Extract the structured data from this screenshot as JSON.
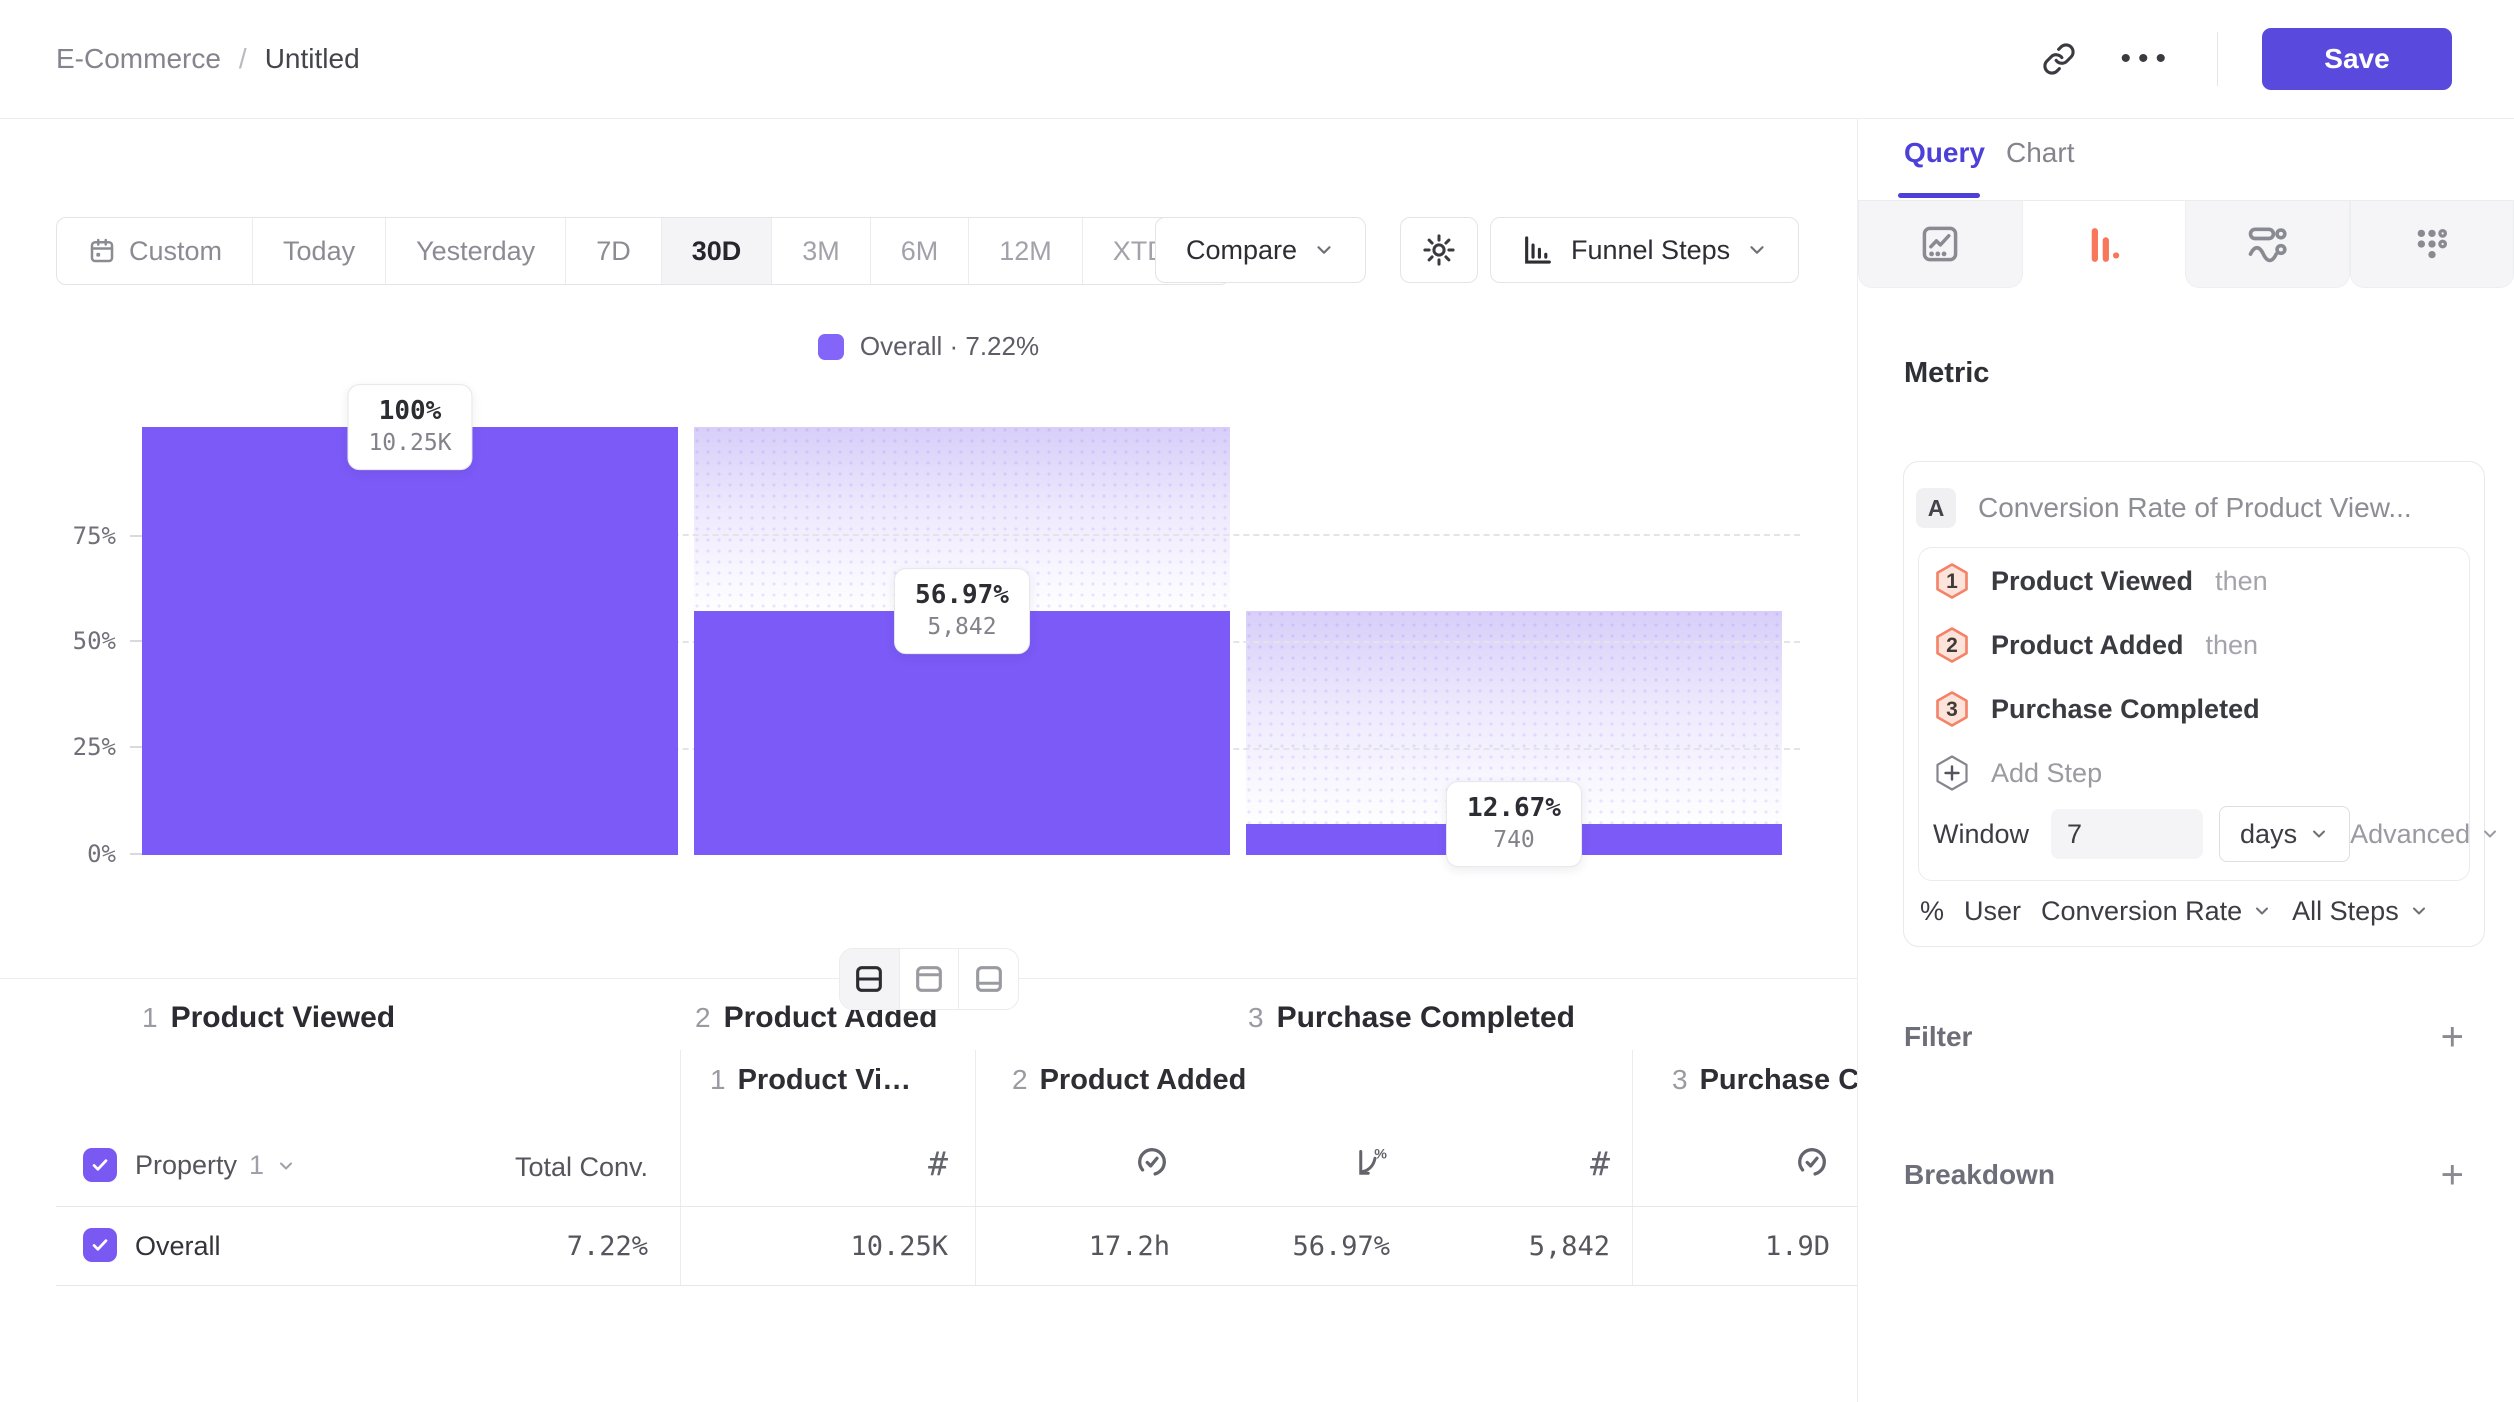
{
  "header": {
    "breadcrumb_parent": "E-Commerce",
    "breadcrumb_sep": "/",
    "breadcrumb_current": "Untitled",
    "save_label": "Save"
  },
  "toolbar": {
    "ranges": [
      "Custom",
      "Today",
      "Yesterday",
      "7D",
      "30D",
      "3M",
      "6M",
      "12M",
      "XTD"
    ],
    "selected_range": "30D",
    "compare_label": "Compare",
    "chart_type_label": "Funnel Steps"
  },
  "chart_data": {
    "type": "funnel",
    "title": "Funnel Steps",
    "legend": [
      {
        "label": "Overall · 7.22%",
        "color": "#8365fa"
      }
    ],
    "y_ticks": [
      "75%",
      "50%",
      "25%",
      "0%"
    ],
    "ylim": [
      0,
      100
    ],
    "grid": "dashed horizontal lines at 25%, 50%, 75%",
    "overall_conversion": "7.22%",
    "steps": [
      {
        "n": "1",
        "label": "Product Viewed",
        "conv_label": "100%",
        "count_label": "10.25K",
        "overall_pct": 100
      },
      {
        "n": "2",
        "label": "Product Added",
        "conv_label": "56.97%",
        "count_label": "5,842",
        "overall_pct": 56.97
      },
      {
        "n": "3",
        "label": "Purchase Completed",
        "conv_label": "12.67%",
        "count_label": "740",
        "overall_pct": 7.22
      }
    ]
  },
  "table": {
    "property_label": "Property",
    "property_index": "1",
    "total_conv_header": "Total Conv.",
    "group_headers": [
      {
        "n": "1",
        "label": "Product Viewed"
      },
      {
        "n": "2",
        "label": "Product Added"
      },
      {
        "n": "3",
        "label": "Purchase Completed"
      }
    ],
    "icons": {
      "count_glyph": "#"
    },
    "rows": [
      {
        "name": "Overall",
        "total_conv": "7.22%",
        "cells": [
          "10.25K",
          "17.2h",
          "56.97%",
          "5,842",
          "1.9D"
        ]
      }
    ]
  },
  "panel": {
    "tabs": [
      {
        "label": "Query",
        "active": true
      },
      {
        "label": "Chart",
        "active": false
      }
    ],
    "metric_heading": "Metric",
    "metric_badge": "A",
    "metric_title": "Conversion Rate of Product View...",
    "steps": [
      {
        "num": "1",
        "label": "Product Viewed",
        "suffix": "then"
      },
      {
        "num": "2",
        "label": "Product Added",
        "suffix": "then"
      },
      {
        "num": "3",
        "label": "Purchase Completed",
        "suffix": ""
      }
    ],
    "add_step_label": "Add Step",
    "window": {
      "label": "Window",
      "value": "7",
      "unit": "days",
      "advanced_label": "Advanced"
    },
    "measure": {
      "symbol": "%",
      "entity": "User",
      "metric": "Conversion Rate",
      "scope": "All Steps"
    },
    "filter_label": "Filter",
    "breakdown_label": "Breakdown",
    "plus_glyph": "+"
  },
  "colors": {
    "primary_purple": "#7b5af7",
    "save_button": "#5a49dd",
    "active_tab": "#4c40d9",
    "funnel_icon_orange": "#f8765a",
    "step_badge_fill": "#fde3da",
    "step_badge_stroke": "#f58166"
  }
}
